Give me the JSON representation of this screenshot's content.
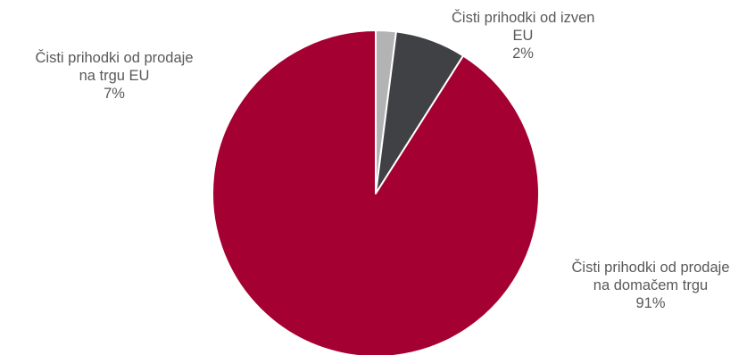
{
  "chart_data": {
    "type": "pie",
    "title": "",
    "slices": [
      {
        "label_lines": [
          "Čisti prihodki od izven",
          "EU"
        ],
        "value": 2,
        "value_label": "2%",
        "color": "#b3b3b3"
      },
      {
        "label_lines": [
          "Čisti prihodki od prodaje",
          "na trgu EU"
        ],
        "value": 7,
        "value_label": "7%",
        "color": "#3f4145"
      },
      {
        "label_lines": [
          "Čisti prihodki od prodaje",
          "na domačem trgu"
        ],
        "value": 91,
        "value_label": "91%",
        "color": "#a50032"
      }
    ],
    "legend": "none",
    "data_labels": "outside"
  }
}
